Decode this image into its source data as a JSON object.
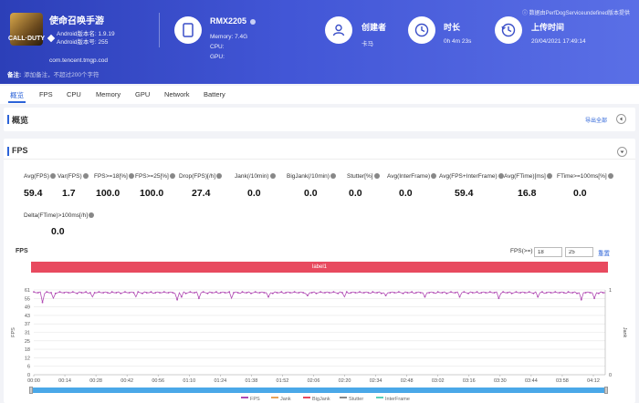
{
  "header": {
    "app_name": "使命召唤手游",
    "app_icon_text": "CALL·DUTY",
    "android_version_name": "Android版本名: 1.9.19",
    "android_version_code": "Android版本号: 255",
    "package": "com.tencent.tmgp.cod",
    "note_label": "备注:",
    "note_placeholder": "添加备注，不超过200个字符",
    "device_name": "RMX2205",
    "memory": "Memory: 7.4G",
    "cpu": "CPU:",
    "gpu": "GPU:",
    "creator_title": "创建者",
    "creator_value": "卡马",
    "duration_title": "时长",
    "duration_value": "0h 4m 23s",
    "upload_title": "上传时间",
    "upload_value": "20/04/2021 17:49:14",
    "data_source": "ⓘ 数据由PerfDogServiceundefined版本提供"
  },
  "tabs": [
    "概览",
    "FPS",
    "CPU",
    "Memory",
    "GPU",
    "Network",
    "Battery"
  ],
  "overview": {
    "title": "概览",
    "export": "导出全部"
  },
  "fps_section": {
    "title": "FPS",
    "metrics": [
      {
        "label": "Avg(FPS)",
        "value": "59.4"
      },
      {
        "label": "Var(FPS)",
        "value": "1.7"
      },
      {
        "label": "FPS>=18[%]",
        "value": "100.0"
      },
      {
        "label": "FPS>=25[%]",
        "value": "100.0"
      },
      {
        "label": "Drop(FPS)[/h]",
        "value": "27.4"
      },
      {
        "label": "Jank(/10min)",
        "value": "0.0"
      },
      {
        "label": "BigJank(/10min)",
        "value": "0.0"
      },
      {
        "label": "Stutter[%]",
        "value": "0.0"
      },
      {
        "label": "Avg(InterFrame)",
        "value": "0.0"
      },
      {
        "label": "Avg(FPS+InterFrame)",
        "value": "59.4"
      },
      {
        "label": "Avg(FTime)[ms]",
        "value": "16.8"
      },
      {
        "label": "FTime>=100ms[%]",
        "value": "0.0"
      }
    ],
    "metric2": {
      "label": "Delta(FTime)>100ms[/h]",
      "value": "0.0"
    }
  },
  "chart_header": {
    "title": "FPS",
    "filter_label": "FPS(>=)",
    "filter_a": "18",
    "filter_b": "25",
    "reset": "重置",
    "label_bar": "label1"
  },
  "chart_data": {
    "type": "line",
    "ylabel": "FPS",
    "y2label": "Jank",
    "yticks": [
      "61",
      "55",
      "49",
      "43",
      "37",
      "31",
      "25",
      "18",
      "12",
      "6",
      "0"
    ],
    "y2ticks": [
      "1",
      "0"
    ],
    "ylim": [
      0,
      61
    ],
    "xticks": [
      "00:00",
      "00:14",
      "00:28",
      "00:42",
      "00:56",
      "01:10",
      "01:24",
      "01:38",
      "01:52",
      "02:06",
      "02:20",
      "02:34",
      "02:48",
      "03:02",
      "03:16",
      "03:30",
      "03:44",
      "03:58",
      "04:12"
    ],
    "x_start_s": 0,
    "x_end_s": 263,
    "baseline": 59,
    "dips": [
      {
        "t": 4,
        "v": 52
      },
      {
        "t": 9,
        "v": 55
      },
      {
        "t": 27,
        "v": 56
      },
      {
        "t": 47,
        "v": 56
      },
      {
        "t": 66,
        "v": 54
      },
      {
        "t": 68,
        "v": 56
      },
      {
        "t": 76,
        "v": 55
      },
      {
        "t": 91,
        "v": 55
      },
      {
        "t": 108,
        "v": 56
      },
      {
        "t": 126,
        "v": 57
      },
      {
        "t": 143,
        "v": 56
      },
      {
        "t": 162,
        "v": 57
      },
      {
        "t": 180,
        "v": 56
      },
      {
        "t": 196,
        "v": 56
      },
      {
        "t": 214,
        "v": 55
      },
      {
        "t": 232,
        "v": 56
      },
      {
        "t": 252,
        "v": 54
      },
      {
        "t": 258,
        "v": 55
      }
    ],
    "legend": [
      {
        "name": "FPS",
        "color": "#b04ab3"
      },
      {
        "name": "Jank",
        "color": "#e8a35a"
      },
      {
        "name": "BigJank",
        "color": "#e84a5f"
      },
      {
        "name": "Stutter",
        "color": "#888888"
      },
      {
        "name": "InterFrame",
        "color": "#5ad0b8"
      }
    ]
  }
}
